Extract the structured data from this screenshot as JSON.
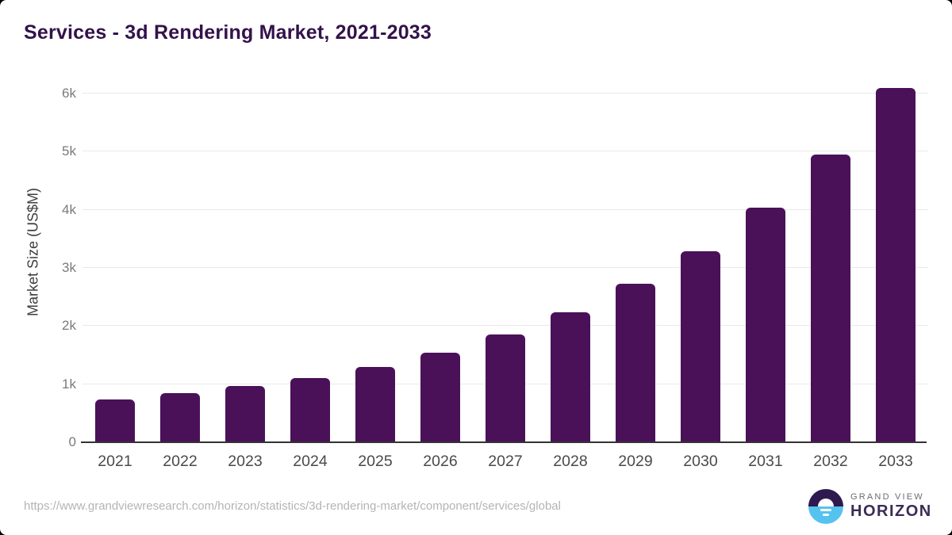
{
  "header": {
    "title": "Services - 3d Rendering Market, 2021-2033"
  },
  "chart_data": {
    "type": "bar",
    "title": "Services - 3d Rendering Market, 2021-2033",
    "categories": [
      "2021",
      "2022",
      "2023",
      "2024",
      "2025",
      "2026",
      "2027",
      "2028",
      "2029",
      "2030",
      "2031",
      "2032",
      "2033"
    ],
    "values": [
      740,
      840,
      965,
      1100,
      1290,
      1540,
      1860,
      2240,
      2725,
      3290,
      4030,
      4950,
      6090
    ],
    "xlabel": "",
    "ylabel": "Market Size (US$M)",
    "ytick_labels": [
      "0",
      "1k",
      "2k",
      "3k",
      "4k",
      "5k",
      "6k"
    ],
    "ytick_values": [
      0,
      1000,
      2000,
      3000,
      4000,
      5000,
      6000
    ],
    "ylim": [
      0,
      6000
    ],
    "grid": "horizontal",
    "legend": false,
    "bar_color": "#4a1159"
  },
  "footer": {
    "source_url": "https://www.grandviewresearch.com/horizon/statistics/3d-rendering-market/component/services/global",
    "brand": {
      "top": "GRAND VIEW",
      "bottom": "HORIZON"
    }
  },
  "colors": {
    "title": "#33124a",
    "bar": "#4a1159",
    "gridline": "#e9e9e9",
    "axis_line": "#333333",
    "ytick_text": "#7a7a7a",
    "xtick_text": "#4a4a4a",
    "url_text": "#b4b4b4",
    "logo_top_half": "#2e1a4e",
    "logo_bottom_half": "#56c3ef"
  }
}
